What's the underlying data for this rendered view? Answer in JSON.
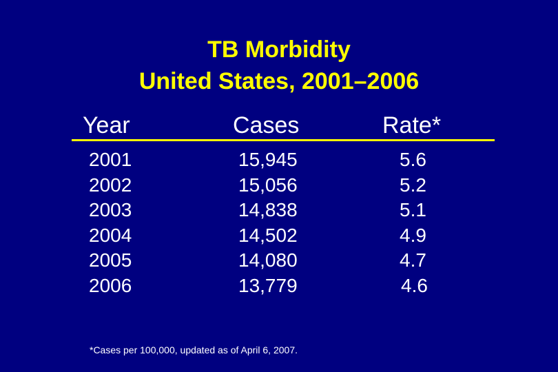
{
  "title": {
    "line1": "TB Morbidity",
    "line2": "United States, 2001–2006"
  },
  "table": {
    "headers": {
      "year": "Year",
      "cases": "Cases",
      "rate": "Rate*"
    },
    "rows": [
      {
        "year": "2001",
        "cases": "15,945",
        "rate": "5.6"
      },
      {
        "year": "2002",
        "cases": "15,056",
        "rate": "5.2"
      },
      {
        "year": "2003",
        "cases": "14,838",
        "rate": "5.1"
      },
      {
        "year": "2004",
        "cases": "14,502",
        "rate": "4.9"
      },
      {
        "year": "2005",
        "cases": "14,080",
        "rate": "4.7"
      },
      {
        "year": "2006",
        "cases": "13,779",
        "rate": "4.6"
      }
    ]
  },
  "footnote": "*Cases per 100,000, updated as of April 6, 2007.",
  "colors": {
    "background": "#000080",
    "title": "#ffff00",
    "text": "#ffffff",
    "rule": "#ffff00"
  }
}
